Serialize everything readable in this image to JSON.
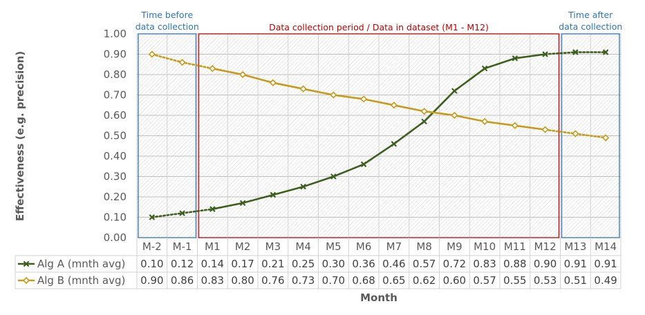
{
  "chart_data": {
    "type": "line",
    "categories": [
      "M-2",
      "M-1",
      "M1",
      "M2",
      "M3",
      "M4",
      "M5",
      "M6",
      "M7",
      "M8",
      "M9",
      "M10",
      "M11",
      "M12",
      "M13",
      "M14"
    ],
    "ylabel": "Effectiveness   (e.g. precision)",
    "xlabel": "Month",
    "ylim": [
      0,
      1
    ],
    "yticks": [
      "0.00",
      "0.10",
      "0.20",
      "0.30",
      "0.40",
      "0.50",
      "0.60",
      "0.70",
      "0.80",
      "0.90",
      "1.00"
    ],
    "grid": true,
    "legend_placement": "data-table",
    "series": [
      {
        "name": "Alg A (mnth avg)",
        "values": [
          0.1,
          0.12,
          0.14,
          0.17,
          0.21,
          0.25,
          0.3,
          0.36,
          0.46,
          0.57,
          0.72,
          0.83,
          0.88,
          0.9,
          0.91,
          0.91
        ],
        "table_values": [
          "0.10",
          "0.12",
          "0.14",
          "0.17",
          "0.21",
          "0.25",
          "0.30",
          "0.36",
          "0.46",
          "0.57",
          "0.72",
          "0.83",
          "0.88",
          "0.90",
          "0.91",
          "0.91"
        ],
        "color": "#3e5e1c",
        "marker": "x"
      },
      {
        "name": "Alg B (mnth avg)",
        "values": [
          0.9,
          0.86,
          0.83,
          0.8,
          0.76,
          0.73,
          0.7,
          0.68,
          0.65,
          0.62,
          0.6,
          0.57,
          0.55,
          0.53,
          0.51,
          0.49
        ],
        "table_values": [
          "0.90",
          "0.86",
          "0.83",
          "0.80",
          "0.76",
          "0.73",
          "0.70",
          "0.68",
          "0.65",
          "0.62",
          "0.60",
          "0.57",
          "0.55",
          "0.53",
          "0.51",
          "0.49"
        ],
        "color": "#c79a1a",
        "marker": "diamond"
      }
    ],
    "regions": [
      {
        "label_lines": [
          "Time before",
          "data collection"
        ],
        "from": "M-2",
        "to": "M-1",
        "color": "#2e75b6"
      },
      {
        "label_lines": [
          "Data collection period / Data in dataset (M1 - M12)"
        ],
        "from": "M1",
        "to": "M12",
        "color": "#c00000"
      },
      {
        "label_lines": [
          "Time after",
          "data collection"
        ],
        "from": "M13",
        "to": "M14",
        "color": "#2e75b6"
      }
    ]
  }
}
